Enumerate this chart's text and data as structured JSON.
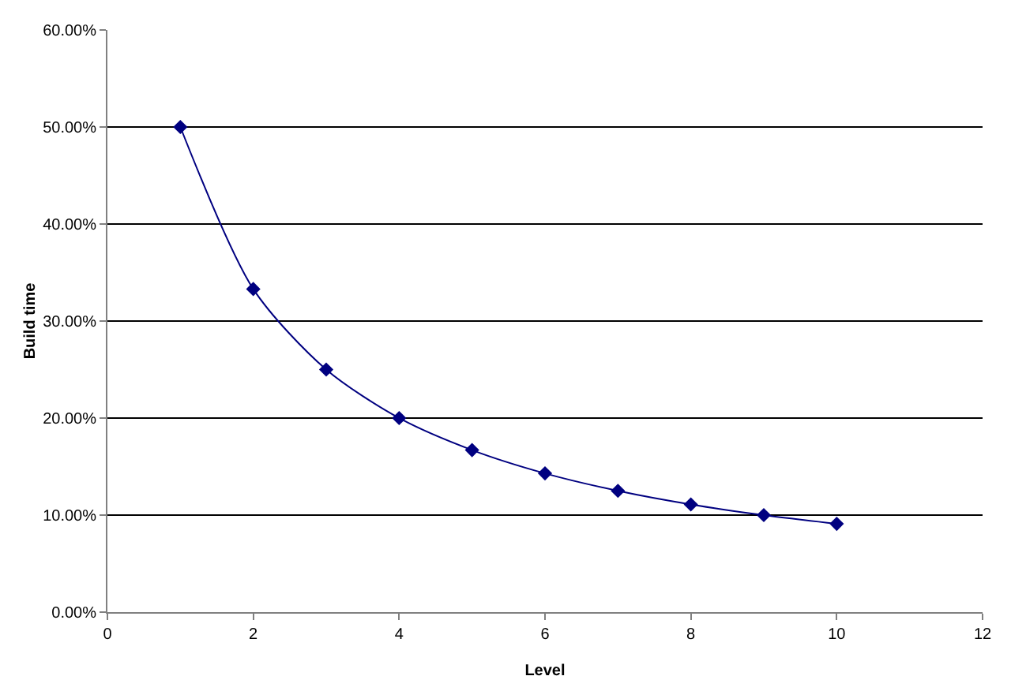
{
  "chart_data": {
    "type": "line",
    "xlabel": "Level",
    "ylabel": "Build time",
    "x": [
      1,
      2,
      3,
      4,
      5,
      6,
      7,
      8,
      9,
      10
    ],
    "series": [
      {
        "color": "#000080",
        "values": [
          50,
          33.3,
          25,
          20,
          16.7,
          14.3,
          12.5,
          11.1,
          10,
          9.1
        ]
      }
    ],
    "xlim": [
      0,
      12
    ],
    "xticks": [
      0,
      2,
      4,
      6,
      8,
      10,
      12
    ],
    "ylim": [
      0,
      60
    ],
    "yticks": [
      {
        "value": 0,
        "label": "0.00%"
      },
      {
        "value": 10,
        "label": "10.00%"
      },
      {
        "value": 20,
        "label": "20.00%"
      },
      {
        "value": 30,
        "label": "30.00%"
      },
      {
        "value": 40,
        "label": "40.00%"
      },
      {
        "value": 50,
        "label": "50.00%"
      },
      {
        "value": 60,
        "label": "60.00%"
      }
    ],
    "grid": "y",
    "marker": "diamond",
    "line_style": "solid"
  }
}
